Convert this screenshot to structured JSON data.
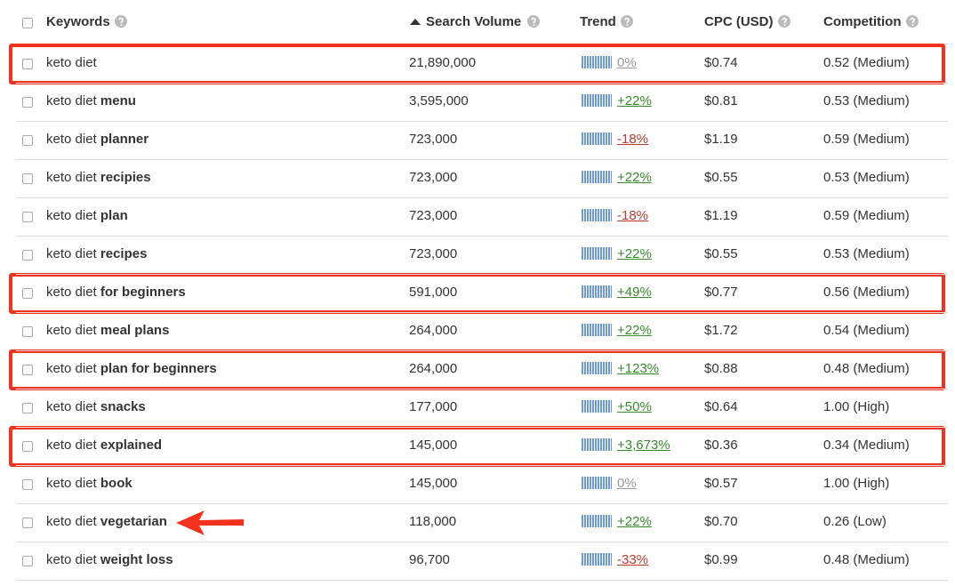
{
  "header": {
    "columns": [
      "Keywords",
      "Search Volume",
      "Trend",
      "CPC (USD)",
      "Competition"
    ]
  },
  "table": {
    "rows": [
      {
        "keyword": "keto diet",
        "volume": "21,890,000",
        "trend": "0%",
        "cpc": "$0.74",
        "competition": "0.52 (Medium)"
      },
      {
        "keyword": "keto diet",
        "keyword_bold": "menu",
        "volume": "3,595,000",
        "trend": "+22%",
        "cpc": "$0.81",
        "competition": "0.53 (Medium)"
      },
      {
        "keyword": "keto diet",
        "keyword_bold": "planner",
        "volume": "723,000",
        "trend": "-18%",
        "cpc": "$1.19",
        "competition": "0.59 (Medium)"
      },
      {
        "keyword": "keto diet",
        "keyword_bold": "recipies",
        "volume": "723,000",
        "trend": "+22%",
        "cpc": "$0.55",
        "competition": "0.53 (Medium)"
      },
      {
        "keyword": "keto diet",
        "keyword_bold": "plan",
        "volume": "723,000",
        "trend": "-18%",
        "cpc": "$1.19",
        "competition": "0.59 (Medium)"
      },
      {
        "keyword": "keto diet",
        "keyword_bold": "recipes",
        "volume": "723,000",
        "trend": "+22%",
        "cpc": "$0.55",
        "competition": "0.53 (Medium)"
      },
      {
        "keyword": "keto diet",
        "keyword_bold": "for beginners",
        "volume": "591,000",
        "trend": "+49%",
        "cpc": "$0.77",
        "competition": "0.56 (Medium)"
      },
      {
        "keyword": "keto diet",
        "keyword_bold": "meal plans",
        "volume": "264,000",
        "trend": "+22%",
        "cpc": "$1.72",
        "competition": "0.54 (Medium)"
      },
      {
        "keyword": "keto diet",
        "keyword_bold": "plan for beginners",
        "volume": "264,000",
        "trend": "+123%",
        "cpc": "$0.88",
        "competition": "0.48 (Medium)"
      },
      {
        "keyword": "keto diet",
        "keyword_bold": "snacks",
        "volume": "177,000",
        "trend": "+50%",
        "cpc": "$0.64",
        "competition": "1.00 (High)"
      },
      {
        "keyword": "keto diet",
        "keyword_bold": "explained",
        "volume": "145,000",
        "trend": "+3,673%",
        "cpc": "$0.36",
        "competition": "0.34 (Medium)"
      },
      {
        "keyword": "keto diet",
        "keyword_bold": "book",
        "volume": "145,000",
        "trend": "0%",
        "cpc": "$0.57",
        "competition": "1.00 (High)"
      },
      {
        "keyword": "keto diet",
        "keyword_bold": "vegetarian",
        "volume": "118,000",
        "trend": "+22%",
        "cpc": "$0.70",
        "competition": "0.26 (Low)"
      },
      {
        "keyword": "keto diet",
        "keyword_bold": "weight loss",
        "volume": "96,700",
        "trend": "-33%",
        "cpc": "$0.99",
        "competition": "0.48 (Medium)"
      }
    ]
  }
}
